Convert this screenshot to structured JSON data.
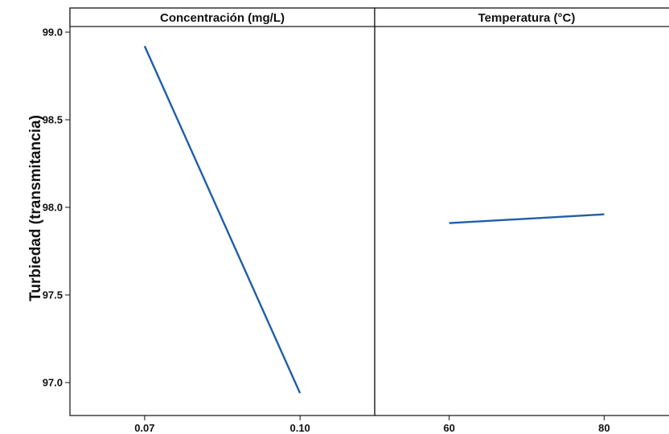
{
  "chart_data": {
    "type": "line",
    "ylabel": "Turbiedad (transmitancia)",
    "ylim": [
      96.8,
      99.1
    ],
    "yticks": [
      99.0,
      98.5,
      98.0,
      97.5,
      97.0
    ],
    "ytick_labels": [
      "99.0",
      "98.5",
      "98.0",
      "97.5",
      "97.0"
    ],
    "line_color": "#1f5ea8",
    "grid": false,
    "panels": [
      {
        "title": "Concentración (mg/L)",
        "x": [
          0.07,
          0.1
        ],
        "x_labels": [
          "0.07",
          "0.10"
        ],
        "y": [
          98.92,
          96.94
        ]
      },
      {
        "title": "Temperatura (°C)",
        "x": [
          60,
          80
        ],
        "x_labels": [
          "60",
          "80"
        ],
        "y": [
          97.91,
          97.96
        ]
      }
    ]
  }
}
